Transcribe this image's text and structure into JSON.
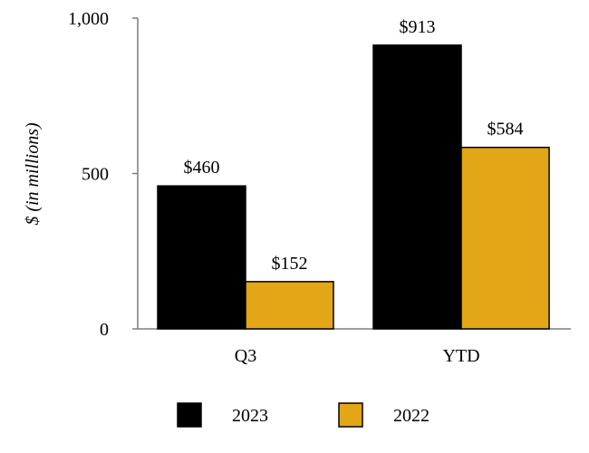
{
  "chart_data": {
    "type": "bar",
    "categories": [
      "Q3",
      "YTD"
    ],
    "series": [
      {
        "name": "2023",
        "values": [
          460,
          913
        ],
        "labels": [
          "$460",
          "$913"
        ],
        "color": "#000000"
      },
      {
        "name": "2022",
        "values": [
          152,
          584
        ],
        "labels": [
          "$152",
          "$584"
        ],
        "color": "#E3A617"
      }
    ],
    "ylabel": "$ (in millions)",
    "ylim": [
      0,
      1000
    ],
    "yticks": [
      0,
      500,
      1000
    ],
    "ytick_labels": [
      "0",
      "500",
      "1,000"
    ],
    "grid": false,
    "legend_position": "bottom"
  }
}
